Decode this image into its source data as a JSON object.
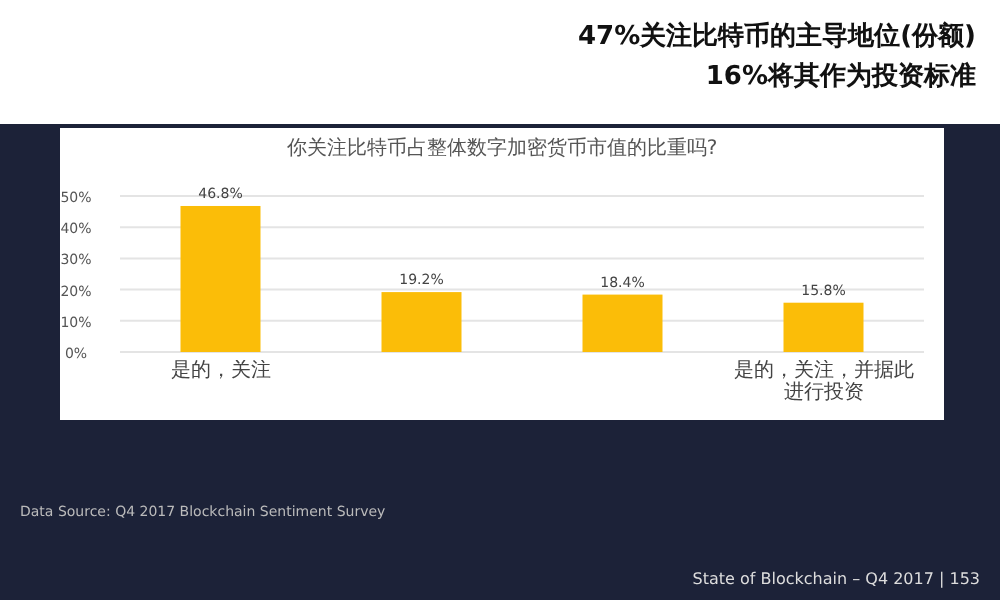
{
  "chart_data": {
    "type": "bar",
    "title": "你关注比特币占整体数字加密货币市值的比重吗?",
    "subtitle": "47%关注比特币的主导地位(份额)\n16%将其作为投资标准",
    "categories": [
      "是的，关注",
      null,
      null,
      "是的，关注，并据此进行投资"
    ],
    "values": [
      46.8,
      19.2,
      18.4,
      15.8
    ],
    "value_labels": [
      "46.8%",
      "19.2%",
      "18.4%",
      "15.8%"
    ],
    "color": "#fbbd08",
    "ylim": [
      0,
      50
    ],
    "yticks": [
      {
        "value": 0,
        "label": "0%"
      },
      {
        "value": 10,
        "label": "10%"
      },
      {
        "value": 20,
        "label": "20%"
      },
      {
        "value": 30,
        "label": "30%"
      },
      {
        "value": 40,
        "label": "40%"
      },
      {
        "value": 50,
        "label": "50%"
      }
    ],
    "grid": "y",
    "annotations": [
      "Data Source: Q4 2017 Blockchain Sentiment Survey",
      "State of Blockchain – Q4 2017  |  153"
    ]
  }
}
